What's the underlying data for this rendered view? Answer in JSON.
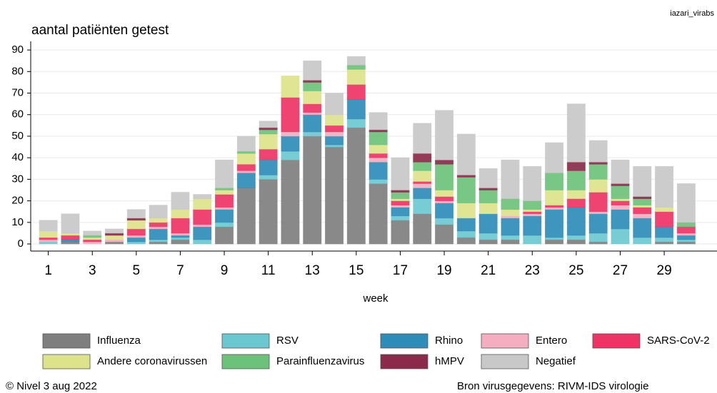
{
  "chart_data": {
    "type": "stacked_bar",
    "title": "aantal patiënten getest",
    "corner_text": "iazari_virabs",
    "x_label": "week",
    "footer_left": "© Nivel 3 aug 2022",
    "footer_right": "Bron virusgegevens: RIVM-IDS virologie",
    "x": [
      1,
      2,
      3,
      4,
      5,
      6,
      7,
      8,
      9,
      10,
      11,
      12,
      13,
      14,
      15,
      16,
      17,
      18,
      19,
      20,
      21,
      22,
      23,
      24,
      25,
      26,
      27,
      28,
      29,
      30
    ],
    "xlim": [
      0.2,
      31.4
    ],
    "xticks": [
      1,
      3,
      5,
      7,
      9,
      11,
      13,
      15,
      17,
      19,
      21,
      23,
      25,
      27,
      29
    ],
    "ylim": [
      -3.3,
      94
    ],
    "yticks": [
      0,
      10,
      20,
      30,
      40,
      50,
      60,
      70,
      80,
      90
    ],
    "grid": true,
    "series": [
      {
        "name": "Influenza",
        "color": "#7f7f7f",
        "values": [
          0,
          1,
          0,
          1,
          0,
          1,
          2,
          0,
          8,
          26,
          30,
          39,
          50,
          45,
          54,
          28,
          11,
          14,
          9,
          3,
          2,
          2,
          0,
          2,
          2,
          1,
          0,
          0,
          1,
          1
        ]
      },
      {
        "name": "RSV",
        "color": "#6cc8d0",
        "values": [
          1,
          0,
          0,
          0,
          1,
          1,
          1,
          2,
          2,
          0,
          2,
          4,
          2,
          1,
          4,
          2,
          2,
          7,
          3,
          3,
          3,
          2,
          4,
          1,
          2,
          4,
          7,
          3,
          2,
          1
        ]
      },
      {
        "name": "Rhino",
        "color": "#2e8cb8",
        "values": [
          0,
          1,
          0,
          0,
          2,
          5,
          1,
          6,
          6,
          7,
          7,
          7,
          8,
          4,
          9,
          8,
          4,
          5,
          7,
          6,
          9,
          8,
          9,
          13,
          13,
          9,
          9,
          9,
          5,
          2
        ]
      },
      {
        "name": "Entero",
        "color": "#f4aec0",
        "values": [
          1,
          0,
          1,
          1,
          1,
          1,
          1,
          1,
          1,
          1,
          0,
          2,
          1,
          2,
          0,
          2,
          1,
          2,
          1,
          0,
          0,
          1,
          1,
          1,
          0,
          1,
          2,
          2,
          0,
          1
        ]
      },
      {
        "name": "SARS-CoV-2",
        "color": "#ee3366",
        "values": [
          1,
          2,
          1,
          0,
          3,
          2,
          7,
          7,
          6,
          3,
          5,
          16,
          4,
          3,
          7,
          2,
          2,
          1,
          2,
          0,
          0,
          0,
          1,
          1,
          4,
          9,
          2,
          3,
          7,
          3
        ]
      },
      {
        "name": "Andere coronavirussen",
        "color": "#dde38a",
        "values": [
          3,
          1,
          1,
          2,
          4,
          2,
          4,
          5,
          2,
          5,
          7,
          10,
          6,
          5,
          7,
          4,
          1,
          5,
          3,
          7,
          5,
          3,
          1,
          7,
          4,
          6,
          1,
          1,
          2,
          0
        ]
      },
      {
        "name": "Parainfluenzavirus",
        "color": "#6cc27a",
        "values": [
          0,
          0,
          1,
          0,
          0,
          0,
          0,
          0,
          1,
          1,
          2,
          0,
          4,
          0,
          2,
          6,
          3,
          4,
          12,
          12,
          6,
          5,
          4,
          8,
          9,
          7,
          6,
          3,
          0,
          2
        ]
      },
      {
        "name": "hMPV",
        "color": "#8b2a4a",
        "values": [
          0,
          0,
          0,
          1,
          1,
          0,
          0,
          0,
          0,
          0,
          1,
          0,
          1,
          0,
          0,
          1,
          1,
          4,
          2,
          1,
          1,
          0,
          0,
          0,
          4,
          1,
          1,
          1,
          0,
          0
        ]
      },
      {
        "name": "Negatief",
        "color": "#c8c8c8",
        "values": [
          5,
          9,
          2,
          2,
          4,
          6,
          8,
          2,
          13,
          7,
          3,
          0,
          9,
          10,
          4,
          8,
          15,
          14,
          23,
          19,
          9,
          18,
          16,
          14,
          27,
          10,
          11,
          14,
          19,
          18
        ]
      }
    ]
  }
}
